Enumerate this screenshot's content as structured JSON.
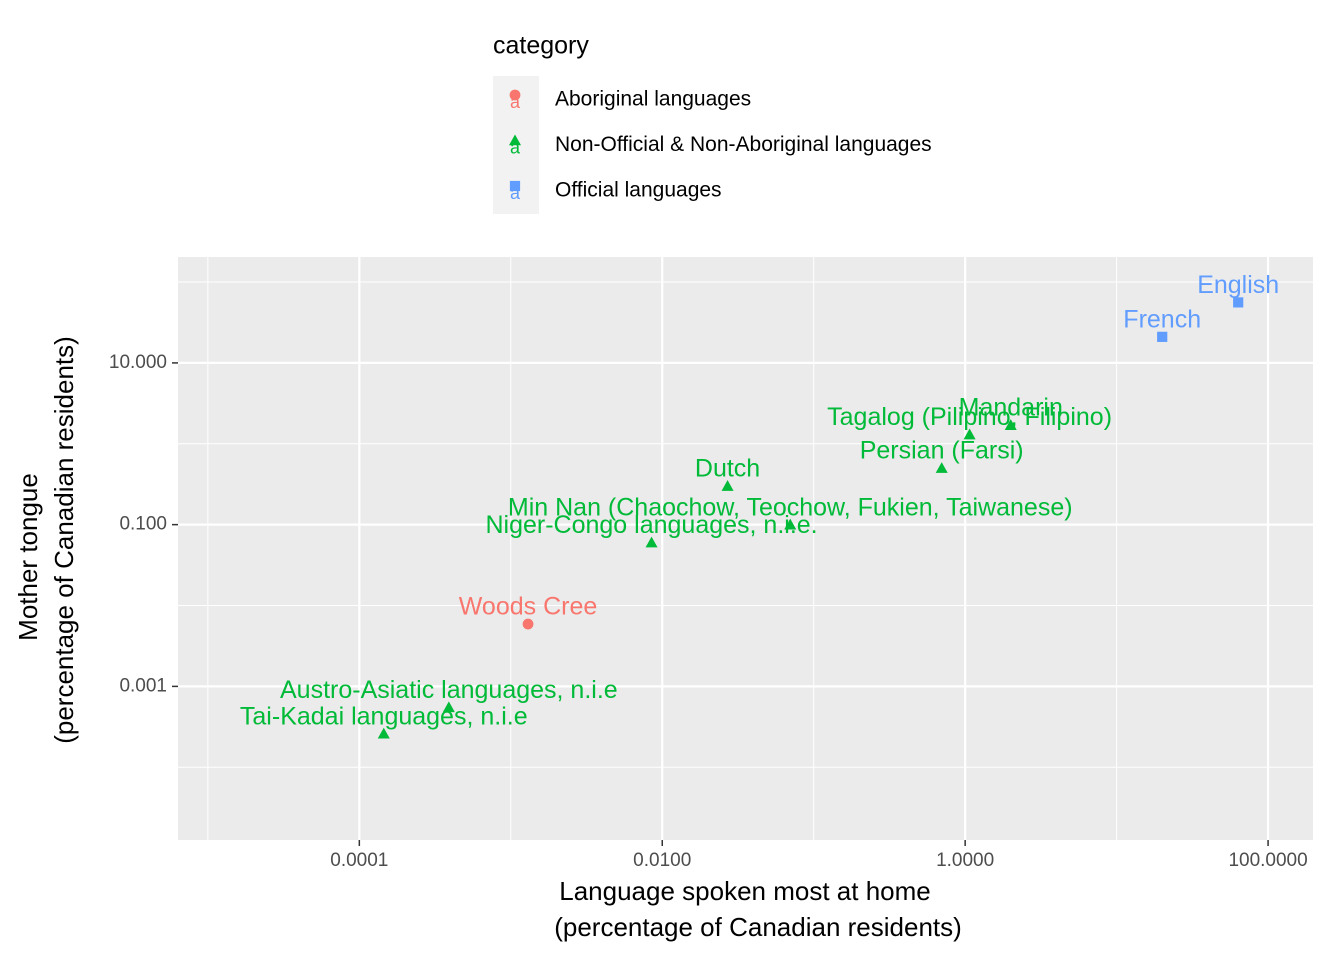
{
  "chart_data": {
    "type": "scatter",
    "xlabel": [
      "Language spoken most at home",
      "(percentage of Canadian residents)"
    ],
    "ylabel": [
      "Mother tongue",
      "(percentage of Canadian residents)"
    ],
    "log_x": true,
    "log_y": true,
    "grid": true,
    "xlim": [
      6.35e-06,
      198
    ],
    "ylim": [
      1.26e-05,
      204
    ],
    "xticks": [
      0.0001,
      {
        "value": 0.01,
        "label": "0.0100"
      },
      {
        "value": 1,
        "label": "1.0000"
      },
      {
        "value": 100,
        "label": "100.0000"
      }
    ],
    "yticks": [
      {
        "value": 10,
        "label": "10.000"
      },
      {
        "value": 0.1,
        "label": "0.100"
      },
      0.001
    ],
    "x_minor": [
      1e-05,
      0.001,
      0.1,
      10
    ],
    "y_minor": [
      100,
      1,
      0.01,
      0.0001
    ],
    "legend_title": "category",
    "legend_position": "top",
    "series": [
      {
        "name": "Aboriginal languages",
        "color": "#F8766D",
        "shape": "circle",
        "labels": [
          "Woods Cree"
        ],
        "x": [
          0.0013
        ],
        "values": [
          0.0059
        ]
      },
      {
        "name": "Non-Official & Non-Aboriginal languages",
        "color": "#00BA38",
        "shape": "triangle",
        "labels": [
          "Dutch",
          "Min Nan (Chaochow, Teochow, Fukien, Taiwanese)",
          "Tai-Kadai languages, n.i.e",
          "Austro-Asiatic languages, n.i.e",
          "Tagalog (Pilipino, Filipino)",
          "Mandarin",
          "Persian (Farsi)",
          "Niger-Congo languages, n.i.e."
        ],
        "x": [
          0.027,
          0.07,
          0.000145,
          0.00039,
          1.07,
          2.0,
          0.7,
          0.0085
        ],
        "values": [
          0.3,
          0.1,
          0.00026,
          0.00055,
          1.3,
          1.7,
          0.5,
          0.06
        ]
      },
      {
        "name": "Official languages",
        "color": "#619CFF",
        "shape": "square",
        "labels": [
          "English",
          "French"
        ],
        "x": [
          63.5,
          20
        ],
        "values": [
          56,
          21
        ]
      }
    ]
  }
}
